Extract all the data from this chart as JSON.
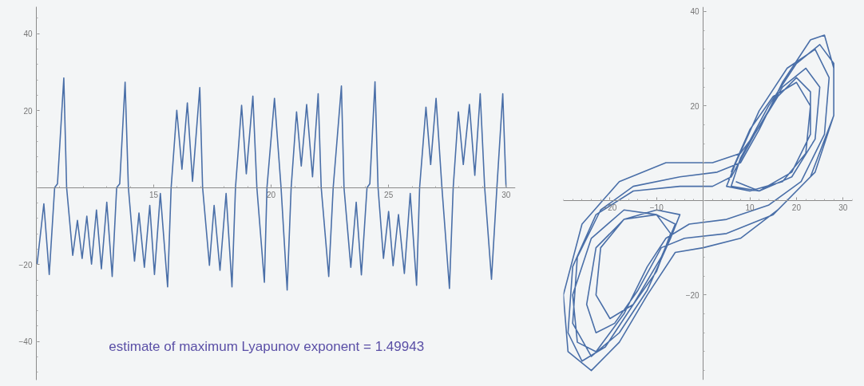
{
  "chart_data": [
    {
      "type": "line",
      "xlim": [
        10,
        30.4
      ],
      "ylim": [
        -50,
        47
      ],
      "xticks": [
        15,
        20,
        25,
        30
      ],
      "yticks": [
        40,
        20,
        -20,
        -40
      ],
      "grid": false,
      "annotations": [
        "estimate  of  maximum  Lyapunov  exponent  = 1.49943"
      ],
      "x": [
        10.03,
        10.32,
        10.55,
        10.78,
        10.9,
        11.17,
        11.29,
        11.55,
        11.75,
        11.95,
        12.15,
        12.35,
        12.56,
        12.77,
        13.0,
        13.23,
        13.42,
        13.55,
        13.78,
        13.92,
        14.18,
        14.37,
        14.6,
        14.83,
        15.03,
        15.28,
        15.59,
        15.74,
        15.98,
        16.2,
        16.43,
        16.65,
        16.96,
        17.08,
        17.37,
        17.57,
        17.82,
        18.08,
        18.33,
        18.48,
        18.74,
        18.94,
        19.22,
        19.39,
        19.71,
        19.82,
        20.14,
        20.42,
        20.68,
        20.85,
        21.08,
        21.28,
        21.51,
        21.76,
        22.0,
        22.13,
        22.45,
        22.64,
        22.99,
        23.1,
        23.39,
        23.62,
        23.84,
        24.08,
        24.2,
        24.42,
        24.55,
        24.78,
        25.0,
        25.19,
        25.42,
        25.67,
        25.92,
        26.19,
        26.32,
        26.59,
        26.79,
        27.02,
        27.27,
        27.59,
        27.75,
        27.97,
        28.18,
        28.44,
        28.67,
        28.9,
        29.09,
        29.38,
        29.61,
        29.86,
        30.0
      ],
      "series": [
        {
          "color": "#4a6fa8",
          "values": [
            -20,
            -4.2,
            -22.6,
            0,
            1,
            28.5,
            0,
            -17.6,
            -8.5,
            -18.4,
            -7.4,
            -19.9,
            -5.8,
            -21.1,
            -3.8,
            -23.1,
            0,
            1,
            27.4,
            0,
            -19.1,
            -6.6,
            -20.7,
            -4.6,
            -22.6,
            -1.5,
            -25.8,
            0,
            20.1,
            4.8,
            22,
            1.6,
            26,
            0,
            -20.2,
            -4.6,
            -21.5,
            -1.5,
            -25.8,
            0,
            21.4,
            3.6,
            23.8,
            0,
            -24.6,
            0,
            23.2,
            0,
            -26.6,
            0,
            19.7,
            5.6,
            21.6,
            2.8,
            24.4,
            0,
            -23.1,
            0,
            26.4,
            0,
            -20.7,
            -3.8,
            -22.7,
            0,
            1,
            27.5,
            0,
            -18.4,
            -6.2,
            -20.3,
            -7,
            -22.3,
            -1.5,
            -25.4,
            0,
            20.9,
            6,
            23.2,
            0,
            -26.2,
            0,
            19.7,
            6,
            21.6,
            3.2,
            24.4,
            0,
            -23.8,
            0,
            24.4,
            0
          ]
        }
      ]
    },
    {
      "type": "line",
      "xlim": [
        -30,
        32
      ],
      "ylim": [
        -38,
        41
      ],
      "xticks": [
        -20,
        -10,
        10,
        20,
        30
      ],
      "yticks": [
        40,
        20,
        -20
      ],
      "grid": false,
      "x": [
        6,
        10,
        15,
        20,
        23,
        22,
        17,
        10,
        5,
        7,
        12,
        18,
        24,
        27,
        26,
        21,
        14,
        5,
        -3,
        -8,
        -12,
        -17,
        -23,
        -27,
        -28,
        -24,
        -17,
        -10,
        -7,
        -10,
        -15,
        -20,
        -23,
        -22,
        -17,
        -10,
        -5,
        -7,
        -12,
        -18,
        -24,
        -28,
        -27,
        -22,
        -15,
        -5,
        3,
        8,
        12,
        17,
        23,
        26,
        28,
        28,
        24,
        16,
        8,
        0,
        -6,
        -12,
        -18,
        -24,
        -29,
        -30,
        -26,
        -18,
        -8,
        2,
        8,
        11,
        16,
        20,
        23,
        23,
        19,
        12,
        6,
        8,
        14,
        20,
        25,
        28,
        28,
        23,
        15,
        5,
        -4,
        -9,
        -14,
        -19,
        -23,
        -25,
        -23,
        -17,
        -10,
        -6,
        -9,
        -15,
        -21,
        -26,
        -29,
        -28,
        -23,
        -15,
        -5,
        2,
        6,
        11,
        17,
        22,
        25,
        24,
        19,
        12,
        7
      ],
      "series": [
        {
          "color": "#4a6fa8",
          "values": [
            6,
            15,
            22,
            25,
            20,
            10,
            4,
            2,
            3,
            8,
            19,
            28,
            32,
            26,
            14,
            4,
            -1,
            -4,
            -5,
            -8,
            -14,
            -24,
            -32,
            -30,
            -20,
            -8,
            -2,
            -3,
            -7,
            -15,
            -22,
            -25,
            -20,
            -10,
            -4,
            -2,
            -3,
            -8,
            -19,
            -28,
            -33,
            -26,
            -12,
            -2,
            3,
            5,
            6,
            8,
            15,
            25,
            34,
            35,
            28,
            18,
            6,
            -2,
            -8,
            -10,
            -11,
            -20,
            -30,
            -36,
            -32,
            -20,
            -5,
            4,
            8,
            8,
            10,
            14,
            22,
            26,
            23,
            14,
            6,
            2,
            3,
            9,
            20,
            29,
            33,
            29,
            18,
            5,
            -3,
            -7,
            -8,
            -10,
            -19,
            -26,
            -28,
            -22,
            -10,
            -4,
            -3,
            -5,
            -12,
            -22,
            -31,
            -34,
            -28,
            -14,
            -3,
            2,
            3,
            3,
            5,
            14,
            24,
            28,
            24,
            13,
            5,
            2,
            4
          ]
        }
      ]
    }
  ]
}
